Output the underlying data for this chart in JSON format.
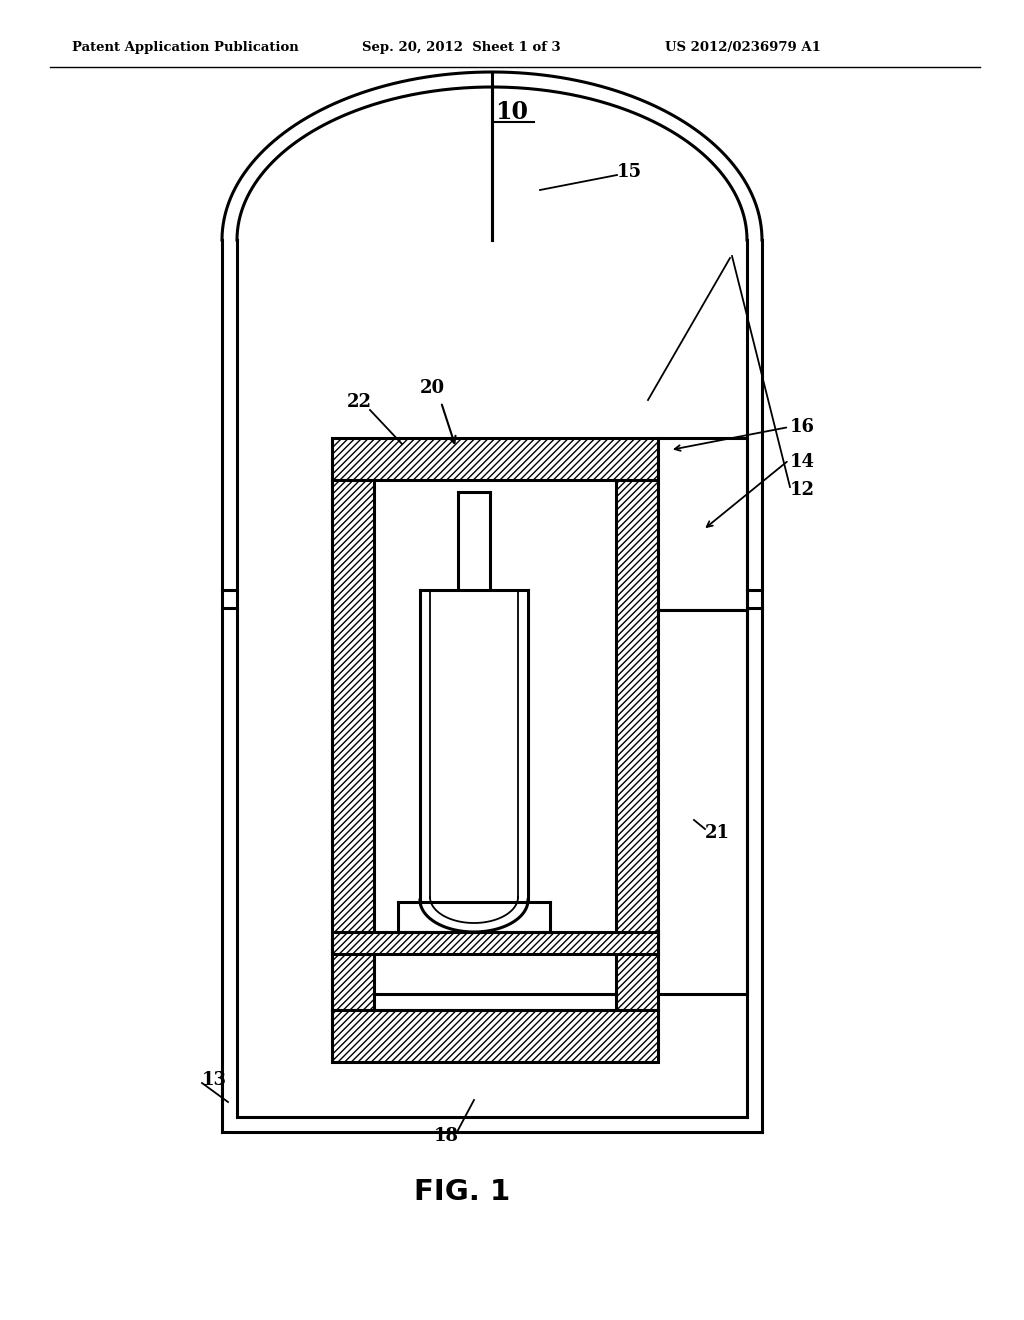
{
  "bg_color": "#ffffff",
  "lc": "#000000",
  "header_left": "Patent Application Publication",
  "header_mid": "Sep. 20, 2012  Sheet 1 of 3",
  "header_right": "US 2012/0236979 A1",
  "fig_label": "FIG. 1",
  "label_10": "10",
  "label_15": "15",
  "label_12": "12",
  "label_16": "16",
  "label_14": "14",
  "label_22": "22",
  "label_20": "20",
  "label_21": "21",
  "label_18": "18",
  "label_13": "13",
  "lw_main": 2.2,
  "lw_thin": 1.3
}
